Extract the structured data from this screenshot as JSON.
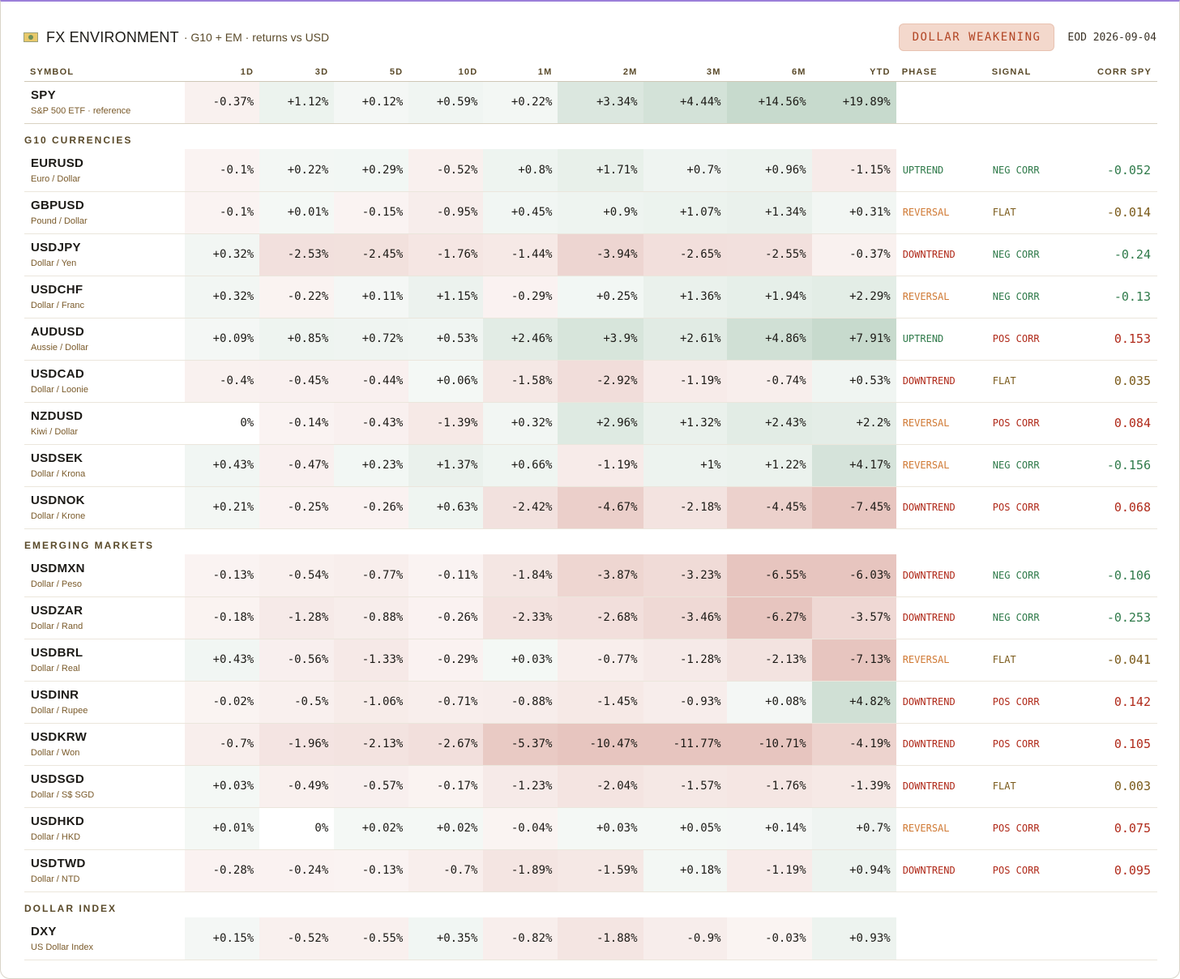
{
  "header": {
    "title": "FX ENVIRONMENT",
    "subtitle": "· G10 + EM · returns vs USD",
    "badge": "DOLLAR WEAKENING",
    "eod": "EOD 2026-09-04",
    "badge_color": "#b24524",
    "badge_bg": "#f3d8cc"
  },
  "columns": {
    "symbol": "SYMBOL",
    "periods": [
      "1D",
      "3D",
      "5D",
      "10D",
      "1M",
      "2M",
      "3M",
      "6M",
      "YTD"
    ],
    "phase": "PHASE",
    "signal": "SIGNAL",
    "corr": "CORR SPY"
  },
  "colors": {
    "positive": "#7aa889",
    "negative": "#c57566",
    "uptrend": "#2f7a4a",
    "downtrend": "#b02a1a",
    "reversal": "#d07a35",
    "neg_corr": "#2f7a4a",
    "pos_corr": "#b02a1a",
    "flat": "#7a5a1a"
  },
  "reference": {
    "symbol": "SPY",
    "desc": "S&P 500 ETF · reference",
    "values": [
      "-0.37%",
      "+1.12%",
      "+0.12%",
      "+0.59%",
      "+0.22%",
      "+3.34%",
      "+4.44%",
      "+14.56%",
      "+19.89%"
    ]
  },
  "sections": [
    {
      "title": "G10 CURRENCIES",
      "rows": [
        {
          "symbol": "EURUSD",
          "desc": "Euro / Dollar",
          "values": [
            "-0.1%",
            "+0.22%",
            "+0.29%",
            "-0.52%",
            "+0.8%",
            "+1.71%",
            "+0.7%",
            "+0.96%",
            "-1.15%"
          ],
          "phase": "UPTREND",
          "signal": "NEG CORR",
          "corr": "-0.052"
        },
        {
          "symbol": "GBPUSD",
          "desc": "Pound / Dollar",
          "values": [
            "-0.1%",
            "+0.01%",
            "-0.15%",
            "-0.95%",
            "+0.45%",
            "+0.9%",
            "+1.07%",
            "+1.34%",
            "+0.31%"
          ],
          "phase": "REVERSAL",
          "signal": "FLAT",
          "corr": "-0.014"
        },
        {
          "symbol": "USDJPY",
          "desc": "Dollar / Yen",
          "values": [
            "+0.32%",
            "-2.53%",
            "-2.45%",
            "-1.76%",
            "-1.44%",
            "-3.94%",
            "-2.65%",
            "-2.55%",
            "-0.37%"
          ],
          "phase": "DOWNTREND",
          "signal": "NEG CORR",
          "corr": "-0.24"
        },
        {
          "symbol": "USDCHF",
          "desc": "Dollar / Franc",
          "values": [
            "+0.32%",
            "-0.22%",
            "+0.11%",
            "+1.15%",
            "-0.29%",
            "+0.25%",
            "+1.36%",
            "+1.94%",
            "+2.29%"
          ],
          "phase": "REVERSAL",
          "signal": "NEG CORR",
          "corr": "-0.13"
        },
        {
          "symbol": "AUDUSD",
          "desc": "Aussie / Dollar",
          "values": [
            "+0.09%",
            "+0.85%",
            "+0.72%",
            "+0.53%",
            "+2.46%",
            "+3.9%",
            "+2.61%",
            "+4.86%",
            "+7.91%"
          ],
          "phase": "UPTREND",
          "signal": "POS CORR",
          "corr": "0.153"
        },
        {
          "symbol": "USDCAD",
          "desc": "Dollar / Loonie",
          "values": [
            "-0.4%",
            "-0.45%",
            "-0.44%",
            "+0.06%",
            "-1.58%",
            "-2.92%",
            "-1.19%",
            "-0.74%",
            "+0.53%"
          ],
          "phase": "DOWNTREND",
          "signal": "FLAT",
          "corr": "0.035"
        },
        {
          "symbol": "NZDUSD",
          "desc": "Kiwi / Dollar",
          "values": [
            "0%",
            "-0.14%",
            "-0.43%",
            "-1.39%",
            "+0.32%",
            "+2.96%",
            "+1.32%",
            "+2.43%",
            "+2.2%"
          ],
          "phase": "REVERSAL",
          "signal": "POS CORR",
          "corr": "0.084"
        },
        {
          "symbol": "USDSEK",
          "desc": "Dollar / Krona",
          "values": [
            "+0.43%",
            "-0.47%",
            "+0.23%",
            "+1.37%",
            "+0.66%",
            "-1.19%",
            "+1%",
            "+1.22%",
            "+4.17%"
          ],
          "phase": "REVERSAL",
          "signal": "NEG CORR",
          "corr": "-0.156"
        },
        {
          "symbol": "USDNOK",
          "desc": "Dollar / Krone",
          "values": [
            "+0.21%",
            "-0.25%",
            "-0.26%",
            "+0.63%",
            "-2.42%",
            "-4.67%",
            "-2.18%",
            "-4.45%",
            "-7.45%"
          ],
          "phase": "DOWNTREND",
          "signal": "POS CORR",
          "corr": "0.068"
        }
      ]
    },
    {
      "title": "EMERGING MARKETS",
      "rows": [
        {
          "symbol": "USDMXN",
          "desc": "Dollar / Peso",
          "values": [
            "-0.13%",
            "-0.54%",
            "-0.77%",
            "-0.11%",
            "-1.84%",
            "-3.87%",
            "-3.23%",
            "-6.55%",
            "-6.03%"
          ],
          "phase": "DOWNTREND",
          "signal": "NEG CORR",
          "corr": "-0.106"
        },
        {
          "symbol": "USDZAR",
          "desc": "Dollar / Rand",
          "values": [
            "-0.18%",
            "-1.28%",
            "-0.88%",
            "-0.26%",
            "-2.33%",
            "-2.68%",
            "-3.46%",
            "-6.27%",
            "-3.57%"
          ],
          "phase": "DOWNTREND",
          "signal": "NEG CORR",
          "corr": "-0.253"
        },
        {
          "symbol": "USDBRL",
          "desc": "Dollar / Real",
          "values": [
            "+0.43%",
            "-0.56%",
            "-1.33%",
            "-0.29%",
            "+0.03%",
            "-0.77%",
            "-1.28%",
            "-2.13%",
            "-7.13%"
          ],
          "phase": "REVERSAL",
          "signal": "FLAT",
          "corr": "-0.041"
        },
        {
          "symbol": "USDINR",
          "desc": "Dollar / Rupee",
          "values": [
            "-0.02%",
            "-0.5%",
            "-1.06%",
            "-0.71%",
            "-0.88%",
            "-1.45%",
            "-0.93%",
            "+0.08%",
            "+4.82%"
          ],
          "phase": "DOWNTREND",
          "signal": "POS CORR",
          "corr": "0.142"
        },
        {
          "symbol": "USDKRW",
          "desc": "Dollar / Won",
          "values": [
            "-0.7%",
            "-1.96%",
            "-2.13%",
            "-2.67%",
            "-5.37%",
            "-10.47%",
            "-11.77%",
            "-10.71%",
            "-4.19%"
          ],
          "phase": "DOWNTREND",
          "signal": "POS CORR",
          "corr": "0.105"
        },
        {
          "symbol": "USDSGD",
          "desc": "Dollar / S$ SGD",
          "values": [
            "+0.03%",
            "-0.49%",
            "-0.57%",
            "-0.17%",
            "-1.23%",
            "-2.04%",
            "-1.57%",
            "-1.76%",
            "-1.39%"
          ],
          "phase": "DOWNTREND",
          "signal": "FLAT",
          "corr": "0.003"
        },
        {
          "symbol": "USDHKD",
          "desc": "Dollar / HKD",
          "values": [
            "+0.01%",
            "0%",
            "+0.02%",
            "+0.02%",
            "-0.04%",
            "+0.03%",
            "+0.05%",
            "+0.14%",
            "+0.7%"
          ],
          "phase": "REVERSAL",
          "signal": "POS CORR",
          "corr": "0.075"
        },
        {
          "symbol": "USDTWD",
          "desc": "Dollar / NTD",
          "values": [
            "-0.28%",
            "-0.24%",
            "-0.13%",
            "-0.7%",
            "-1.89%",
            "-1.59%",
            "+0.18%",
            "-1.19%",
            "+0.94%"
          ],
          "phase": "DOWNTREND",
          "signal": "POS CORR",
          "corr": "0.095"
        }
      ]
    },
    {
      "title": "DOLLAR INDEX",
      "rows": [
        {
          "symbol": "DXY",
          "desc": "US Dollar Index",
          "values": [
            "+0.15%",
            "-0.52%",
            "-0.55%",
            "+0.35%",
            "-0.82%",
            "-1.88%",
            "-0.9%",
            "-0.03%",
            "+0.93%"
          ],
          "phase": "",
          "signal": "",
          "corr": ""
        }
      ]
    }
  ]
}
